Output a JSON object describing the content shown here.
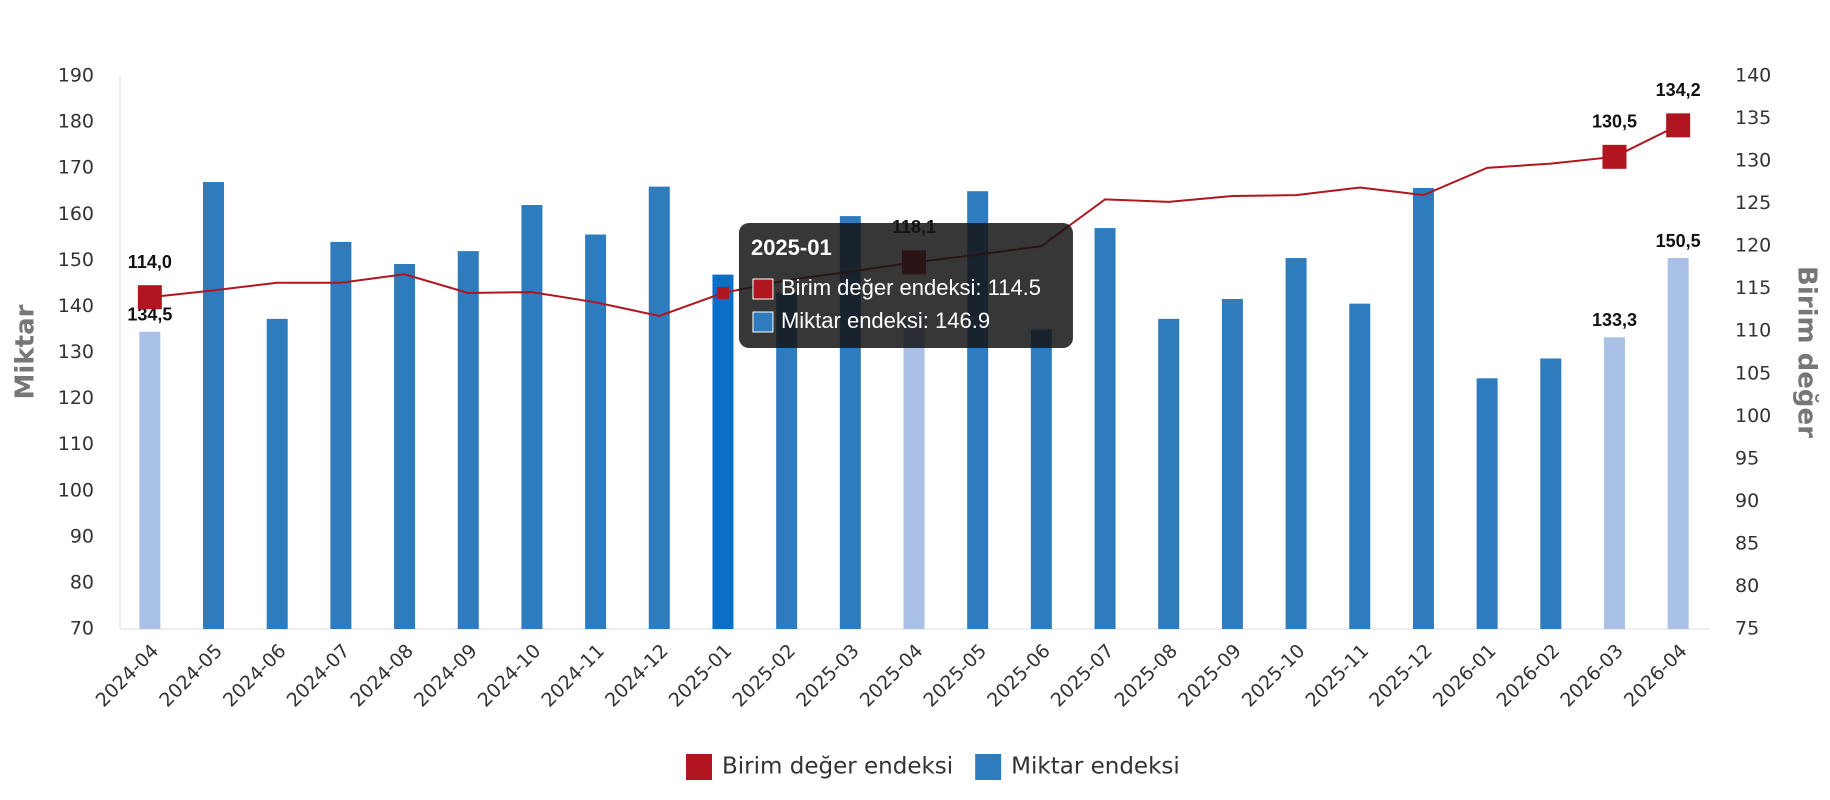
{
  "chart_data": {
    "type": "bar-line",
    "categories": [
      "2024-04",
      "2024-05",
      "2024-06",
      "2024-07",
      "2024-08",
      "2024-09",
      "2024-10",
      "2024-11",
      "2024-12",
      "2025-01",
      "2025-02",
      "2025-03",
      "2025-04",
      "2025-05",
      "2025-06",
      "2025-07",
      "2025-08",
      "2025-09",
      "2025-10",
      "2025-11",
      "2025-12",
      "2026-01",
      "2026-02",
      "2026-03",
      "2026-04"
    ],
    "y_label": "Miktar",
    "y2_label": "Birim değer",
    "ylim": [
      70,
      190
    ],
    "yticks": [
      70,
      80,
      90,
      100,
      110,
      120,
      130,
      140,
      150,
      160,
      170,
      180,
      190
    ],
    "y2lim": [
      75,
      140
    ],
    "y2ticks": [
      75,
      80,
      85,
      90,
      95,
      100,
      105,
      110,
      115,
      120,
      125,
      130,
      135,
      140
    ],
    "series": [
      {
        "name": "Birim değer endeksi",
        "type": "line",
        "axis": "y2",
        "color": "#b0161f",
        "values": [
          114.0,
          114.8,
          115.7,
          115.7,
          116.7,
          114.5,
          114.6,
          113.4,
          111.8,
          114.5,
          116.0,
          117.0,
          118.1,
          119.0,
          120.0,
          125.5,
          125.2,
          125.9,
          126.0,
          126.9,
          126.0,
          129.2,
          129.7,
          130.5,
          134.2
        ],
        "value_labels": [
          "114,0",
          null,
          null,
          null,
          null,
          null,
          null,
          null,
          null,
          null,
          null,
          null,
          "118,1",
          null,
          null,
          null,
          null,
          null,
          null,
          null,
          null,
          null,
          null,
          "130,5",
          "134,2"
        ]
      },
      {
        "name": "Miktar endeksi",
        "type": "bar",
        "axis": "y",
        "color": "#2e7bbd",
        "colors": [
          "#a9c1e6",
          "#2e7bbd",
          "#2e7bbd",
          "#2e7bbd",
          "#2e7bbd",
          "#2e7bbd",
          "#2e7bbd",
          "#2e7bbd",
          "#2e7bbd",
          "#0b6fc7",
          "#2e7bbd",
          "#2e7bbd",
          "#a9c1e6",
          "#2e7bbd",
          "#2e7bbd",
          "#2e7bbd",
          "#2e7bbd",
          "#2e7bbd",
          "#2e7bbd",
          "#2e7bbd",
          "#2e7bbd",
          "#2e7bbd",
          "#2e7bbd",
          "#a9c1e6",
          "#a9c1e6"
        ],
        "values": [
          134.5,
          167,
          137.3,
          154,
          149.2,
          152,
          162,
          155.6,
          166,
          146.9,
          143,
          159.6,
          138,
          165,
          135,
          157,
          137.3,
          141.6,
          150.5,
          140.6,
          165.7,
          124.4,
          128.7,
          133.3,
          150.5
        ],
        "value_labels": [
          "134,5",
          null,
          null,
          null,
          null,
          null,
          null,
          null,
          null,
          null,
          null,
          null,
          null,
          null,
          null,
          null,
          null,
          null,
          null,
          null,
          null,
          null,
          null,
          "133,3",
          "150,5"
        ]
      }
    ],
    "tooltip": {
      "index": 9,
      "title": "2025-01",
      "lines": [
        "Birim değer endeksi: 114.5",
        "Miktar endeksi: 146.9"
      ]
    }
  }
}
